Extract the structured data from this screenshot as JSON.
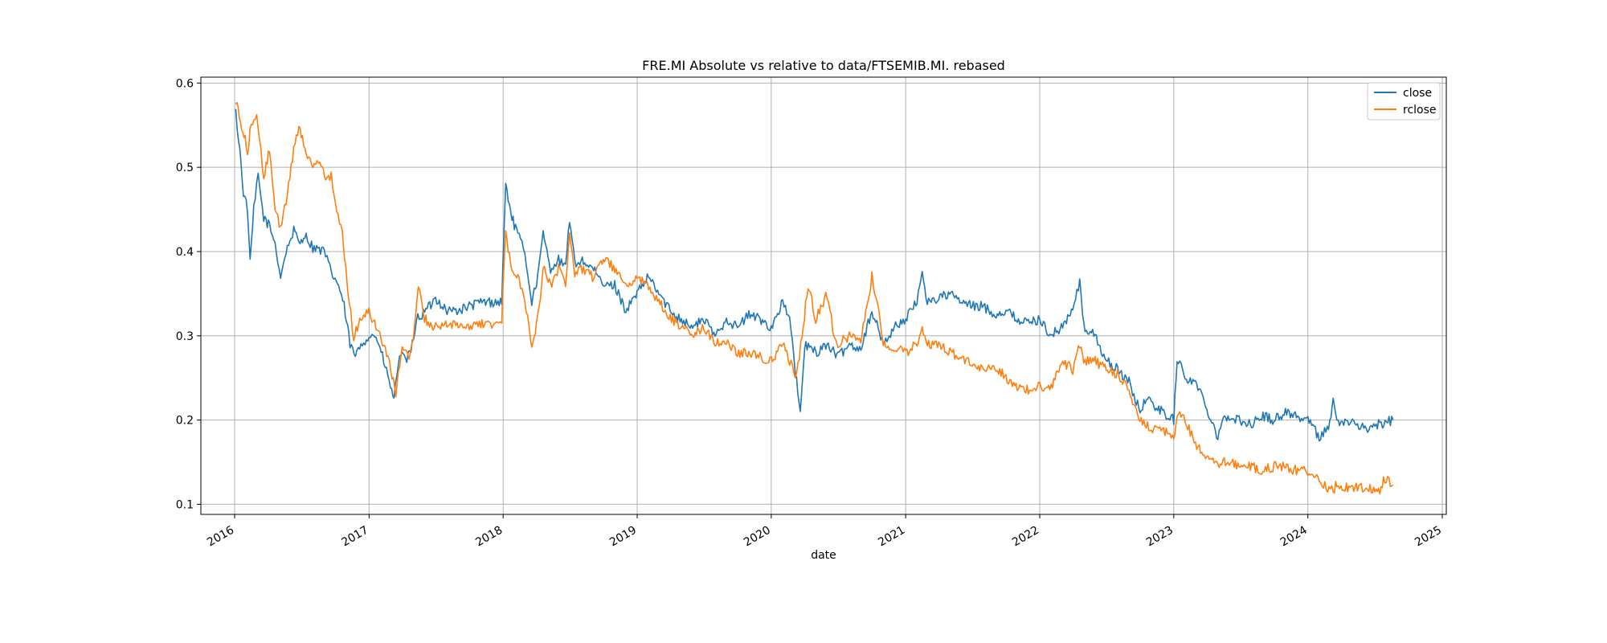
{
  "chart_data": {
    "type": "line",
    "title": "FRE.MI Absolute vs relative to data/FTSEMIB.MI. rebased",
    "xlabel": "date",
    "ylabel": "",
    "xlim": [
      "2015-10-01",
      "2025-01-12"
    ],
    "ylim": [
      0.088,
      0.607
    ],
    "x_ticks": [
      "2016",
      "2017",
      "2018",
      "2019",
      "2020",
      "2021",
      "2022",
      "2023",
      "2024",
      "2025"
    ],
    "y_ticks": [
      "0.1",
      "0.2",
      "0.3",
      "0.4",
      "0.5",
      "0.6"
    ],
    "grid": true,
    "legend_position": "upper right",
    "colors": {
      "close": "#1f77b4",
      "rclose": "#ff7f0e"
    },
    "series": [
      {
        "name": "close",
        "color": "#1f77b4",
        "points": [
          [
            "2016-01-04",
            0.565
          ],
          [
            "2016-01-15",
            0.52
          ],
          [
            "2016-01-25",
            0.47
          ],
          [
            "2016-02-05",
            0.45
          ],
          [
            "2016-02-12",
            0.385
          ],
          [
            "2016-02-22",
            0.45
          ],
          [
            "2016-03-05",
            0.49
          ],
          [
            "2016-03-20",
            0.44
          ],
          [
            "2016-04-05",
            0.43
          ],
          [
            "2016-04-20",
            0.41
          ],
          [
            "2016-05-05",
            0.37
          ],
          [
            "2016-05-20",
            0.4
          ],
          [
            "2016-06-10",
            0.425
          ],
          [
            "2016-06-24",
            0.41
          ],
          [
            "2016-07-10",
            0.42
          ],
          [
            "2016-08-01",
            0.405
          ],
          [
            "2016-09-01",
            0.4
          ],
          [
            "2016-09-20",
            0.375
          ],
          [
            "2016-10-10",
            0.36
          ],
          [
            "2016-10-25",
            0.335
          ],
          [
            "2016-11-10",
            0.29
          ],
          [
            "2016-11-25",
            0.275
          ],
          [
            "2016-12-10",
            0.29
          ],
          [
            "2017-01-01",
            0.3
          ],
          [
            "2017-01-20",
            0.3
          ],
          [
            "2017-02-10",
            0.27
          ],
          [
            "2017-02-25",
            0.245
          ],
          [
            "2017-03-10",
            0.225
          ],
          [
            "2017-03-25",
            0.28
          ],
          [
            "2017-04-10",
            0.27
          ],
          [
            "2017-04-25",
            0.28
          ],
          [
            "2017-05-10",
            0.32
          ],
          [
            "2017-05-25",
            0.325
          ],
          [
            "2017-06-15",
            0.335
          ],
          [
            "2017-07-01",
            0.345
          ],
          [
            "2017-08-01",
            0.33
          ],
          [
            "2017-09-01",
            0.33
          ],
          [
            "2017-10-01",
            0.335
          ],
          [
            "2017-11-01",
            0.34
          ],
          [
            "2017-12-01",
            0.34
          ],
          [
            "2017-12-28",
            0.34
          ],
          [
            "2018-01-08",
            0.48
          ],
          [
            "2018-01-25",
            0.44
          ],
          [
            "2018-02-10",
            0.42
          ],
          [
            "2018-03-01",
            0.4
          ],
          [
            "2018-03-20",
            0.34
          ],
          [
            "2018-04-05",
            0.37
          ],
          [
            "2018-04-20",
            0.42
          ],
          [
            "2018-05-10",
            0.38
          ],
          [
            "2018-06-01",
            0.39
          ],
          [
            "2018-06-20",
            0.38
          ],
          [
            "2018-07-01",
            0.44
          ],
          [
            "2018-07-15",
            0.385
          ],
          [
            "2018-08-01",
            0.39
          ],
          [
            "2018-09-01",
            0.38
          ],
          [
            "2018-10-01",
            0.36
          ],
          [
            "2018-11-01",
            0.36
          ],
          [
            "2018-12-01",
            0.33
          ],
          [
            "2019-01-01",
            0.35
          ],
          [
            "2019-02-01",
            0.37
          ],
          [
            "2019-03-01",
            0.35
          ],
          [
            "2019-04-01",
            0.33
          ],
          [
            "2019-05-01",
            0.32
          ],
          [
            "2019-06-01",
            0.31
          ],
          [
            "2019-07-01",
            0.32
          ],
          [
            "2019-08-01",
            0.3
          ],
          [
            "2019-09-01",
            0.32
          ],
          [
            "2019-10-01",
            0.31
          ],
          [
            "2019-11-01",
            0.325
          ],
          [
            "2019-12-01",
            0.32
          ],
          [
            "2020-01-01",
            0.31
          ],
          [
            "2020-02-01",
            0.34
          ],
          [
            "2020-02-20",
            0.32
          ],
          [
            "2020-03-10",
            0.245
          ],
          [
            "2020-03-20",
            0.205
          ],
          [
            "2020-04-01",
            0.29
          ],
          [
            "2020-05-01",
            0.28
          ],
          [
            "2020-06-01",
            0.29
          ],
          [
            "2020-07-01",
            0.275
          ],
          [
            "2020-08-01",
            0.29
          ],
          [
            "2020-09-01",
            0.285
          ],
          [
            "2020-10-01",
            0.33
          ],
          [
            "2020-11-01",
            0.29
          ],
          [
            "2020-12-01",
            0.31
          ],
          [
            "2021-01-01",
            0.32
          ],
          [
            "2021-02-01",
            0.34
          ],
          [
            "2021-02-15",
            0.378
          ],
          [
            "2021-03-01",
            0.34
          ],
          [
            "2021-04-01",
            0.345
          ],
          [
            "2021-05-01",
            0.35
          ],
          [
            "2021-06-01",
            0.34
          ],
          [
            "2021-07-01",
            0.335
          ],
          [
            "2021-08-01",
            0.335
          ],
          [
            "2021-09-01",
            0.325
          ],
          [
            "2021-10-01",
            0.33
          ],
          [
            "2021-11-01",
            0.32
          ],
          [
            "2021-12-01",
            0.315
          ],
          [
            "2022-01-01",
            0.32
          ],
          [
            "2022-02-01",
            0.3
          ],
          [
            "2022-03-01",
            0.31
          ],
          [
            "2022-04-01",
            0.33
          ],
          [
            "2022-04-20",
            0.365
          ],
          [
            "2022-05-01",
            0.31
          ],
          [
            "2022-06-01",
            0.3
          ],
          [
            "2022-07-01",
            0.27
          ],
          [
            "2022-08-01",
            0.26
          ],
          [
            "2022-09-01",
            0.245
          ],
          [
            "2022-10-01",
            0.21
          ],
          [
            "2022-10-15",
            0.225
          ],
          [
            "2022-11-01",
            0.22
          ],
          [
            "2022-12-01",
            0.21
          ],
          [
            "2023-01-01",
            0.2
          ],
          [
            "2023-01-10",
            0.275
          ],
          [
            "2023-02-01",
            0.25
          ],
          [
            "2023-03-01",
            0.245
          ],
          [
            "2023-04-01",
            0.215
          ],
          [
            "2023-05-01",
            0.18
          ],
          [
            "2023-05-15",
            0.205
          ],
          [
            "2023-06-01",
            0.2
          ],
          [
            "2023-07-01",
            0.2
          ],
          [
            "2023-08-01",
            0.195
          ],
          [
            "2023-09-01",
            0.205
          ],
          [
            "2023-10-01",
            0.2
          ],
          [
            "2023-11-01",
            0.21
          ],
          [
            "2023-12-01",
            0.205
          ],
          [
            "2024-01-01",
            0.2
          ],
          [
            "2024-02-01",
            0.18
          ],
          [
            "2024-03-01",
            0.195
          ],
          [
            "2024-03-10",
            0.23
          ],
          [
            "2024-03-20",
            0.195
          ],
          [
            "2024-04-15",
            0.198
          ],
          [
            "2024-05-15",
            0.195
          ],
          [
            "2024-06-15",
            0.19
          ],
          [
            "2024-07-15",
            0.195
          ],
          [
            "2024-08-20",
            0.2
          ]
        ]
      },
      {
        "name": "rclose",
        "color": "#ff7f0e",
        "points": [
          [
            "2016-01-04",
            0.58
          ],
          [
            "2016-01-20",
            0.55
          ],
          [
            "2016-02-05",
            0.52
          ],
          [
            "2016-02-15",
            0.55
          ],
          [
            "2016-03-01",
            0.565
          ],
          [
            "2016-03-20",
            0.49
          ],
          [
            "2016-04-05",
            0.52
          ],
          [
            "2016-04-20",
            0.45
          ],
          [
            "2016-05-05",
            0.43
          ],
          [
            "2016-05-20",
            0.46
          ],
          [
            "2016-06-10",
            0.52
          ],
          [
            "2016-06-24",
            0.55
          ],
          [
            "2016-07-10",
            0.52
          ],
          [
            "2016-08-01",
            0.5
          ],
          [
            "2016-08-20",
            0.51
          ],
          [
            "2016-09-05",
            0.48
          ],
          [
            "2016-09-20",
            0.49
          ],
          [
            "2016-10-05",
            0.45
          ],
          [
            "2016-10-20",
            0.42
          ],
          [
            "2016-11-05",
            0.35
          ],
          [
            "2016-11-20",
            0.3
          ],
          [
            "2016-12-10",
            0.32
          ],
          [
            "2017-01-01",
            0.33
          ],
          [
            "2017-01-20",
            0.31
          ],
          [
            "2017-02-10",
            0.29
          ],
          [
            "2017-03-01",
            0.26
          ],
          [
            "2017-03-15",
            0.23
          ],
          [
            "2017-04-01",
            0.29
          ],
          [
            "2017-04-20",
            0.27
          ],
          [
            "2017-05-05",
            0.31
          ],
          [
            "2017-05-15",
            0.36
          ],
          [
            "2017-06-01",
            0.32
          ],
          [
            "2017-07-01",
            0.31
          ],
          [
            "2017-08-01",
            0.315
          ],
          [
            "2017-09-01",
            0.31
          ],
          [
            "2017-10-01",
            0.31
          ],
          [
            "2017-11-01",
            0.315
          ],
          [
            "2017-12-01",
            0.31
          ],
          [
            "2017-12-28",
            0.32
          ],
          [
            "2018-01-08",
            0.42
          ],
          [
            "2018-01-25",
            0.38
          ],
          [
            "2018-02-10",
            0.37
          ],
          [
            "2018-03-01",
            0.34
          ],
          [
            "2018-03-20",
            0.29
          ],
          [
            "2018-04-05",
            0.32
          ],
          [
            "2018-04-20",
            0.38
          ],
          [
            "2018-05-10",
            0.36
          ],
          [
            "2018-06-01",
            0.38
          ],
          [
            "2018-06-20",
            0.36
          ],
          [
            "2018-07-01",
            0.42
          ],
          [
            "2018-07-15",
            0.37
          ],
          [
            "2018-08-01",
            0.38
          ],
          [
            "2018-09-01",
            0.37
          ],
          [
            "2018-10-01",
            0.39
          ],
          [
            "2018-11-01",
            0.38
          ],
          [
            "2018-12-01",
            0.36
          ],
          [
            "2019-01-01",
            0.37
          ],
          [
            "2019-02-01",
            0.36
          ],
          [
            "2019-03-01",
            0.34
          ],
          [
            "2019-04-01",
            0.32
          ],
          [
            "2019-05-01",
            0.31
          ],
          [
            "2019-06-01",
            0.3
          ],
          [
            "2019-07-01",
            0.31
          ],
          [
            "2019-08-01",
            0.29
          ],
          [
            "2019-09-01",
            0.295
          ],
          [
            "2019-10-01",
            0.28
          ],
          [
            "2019-11-01",
            0.28
          ],
          [
            "2019-12-01",
            0.275
          ],
          [
            "2020-01-01",
            0.27
          ],
          [
            "2020-02-01",
            0.29
          ],
          [
            "2020-02-20",
            0.27
          ],
          [
            "2020-03-10",
            0.25
          ],
          [
            "2020-03-25",
            0.3
          ],
          [
            "2020-04-10",
            0.36
          ],
          [
            "2020-05-01",
            0.32
          ],
          [
            "2020-06-01",
            0.35
          ],
          [
            "2020-06-20",
            0.3
          ],
          [
            "2020-07-01",
            0.29
          ],
          [
            "2020-08-01",
            0.3
          ],
          [
            "2020-09-01",
            0.295
          ],
          [
            "2020-10-01",
            0.37
          ],
          [
            "2020-10-20",
            0.33
          ],
          [
            "2020-11-01",
            0.29
          ],
          [
            "2020-12-01",
            0.285
          ],
          [
            "2021-01-01",
            0.28
          ],
          [
            "2021-02-01",
            0.29
          ],
          [
            "2021-02-15",
            0.31
          ],
          [
            "2021-03-01",
            0.29
          ],
          [
            "2021-04-01",
            0.29
          ],
          [
            "2021-05-01",
            0.28
          ],
          [
            "2021-06-01",
            0.275
          ],
          [
            "2021-07-01",
            0.265
          ],
          [
            "2021-08-01",
            0.26
          ],
          [
            "2021-09-01",
            0.265
          ],
          [
            "2021-10-01",
            0.25
          ],
          [
            "2021-11-01",
            0.24
          ],
          [
            "2021-12-01",
            0.235
          ],
          [
            "2022-01-01",
            0.24
          ],
          [
            "2022-02-01",
            0.24
          ],
          [
            "2022-03-01",
            0.27
          ],
          [
            "2022-04-01",
            0.26
          ],
          [
            "2022-04-20",
            0.29
          ],
          [
            "2022-05-01",
            0.27
          ],
          [
            "2022-06-01",
            0.27
          ],
          [
            "2022-07-01",
            0.26
          ],
          [
            "2022-08-01",
            0.255
          ],
          [
            "2022-09-01",
            0.235
          ],
          [
            "2022-10-01",
            0.2
          ],
          [
            "2022-11-01",
            0.19
          ],
          [
            "2022-12-01",
            0.19
          ],
          [
            "2023-01-01",
            0.175
          ],
          [
            "2023-01-10",
            0.21
          ],
          [
            "2023-02-01",
            0.2
          ],
          [
            "2023-03-01",
            0.17
          ],
          [
            "2023-04-01",
            0.155
          ],
          [
            "2023-05-01",
            0.145
          ],
          [
            "2023-05-15",
            0.15
          ],
          [
            "2023-06-01",
            0.15
          ],
          [
            "2023-07-01",
            0.145
          ],
          [
            "2023-08-01",
            0.145
          ],
          [
            "2023-09-01",
            0.14
          ],
          [
            "2023-10-01",
            0.145
          ],
          [
            "2023-11-01",
            0.145
          ],
          [
            "2023-12-01",
            0.14
          ],
          [
            "2024-01-01",
            0.14
          ],
          [
            "2024-02-01",
            0.13
          ],
          [
            "2024-02-20",
            0.12
          ],
          [
            "2024-03-10",
            0.115
          ],
          [
            "2024-03-20",
            0.125
          ],
          [
            "2024-04-15",
            0.12
          ],
          [
            "2024-05-15",
            0.12
          ],
          [
            "2024-06-15",
            0.118
          ],
          [
            "2024-07-15",
            0.115
          ],
          [
            "2024-07-25",
            0.13
          ],
          [
            "2024-08-20",
            0.123
          ]
        ]
      }
    ]
  }
}
